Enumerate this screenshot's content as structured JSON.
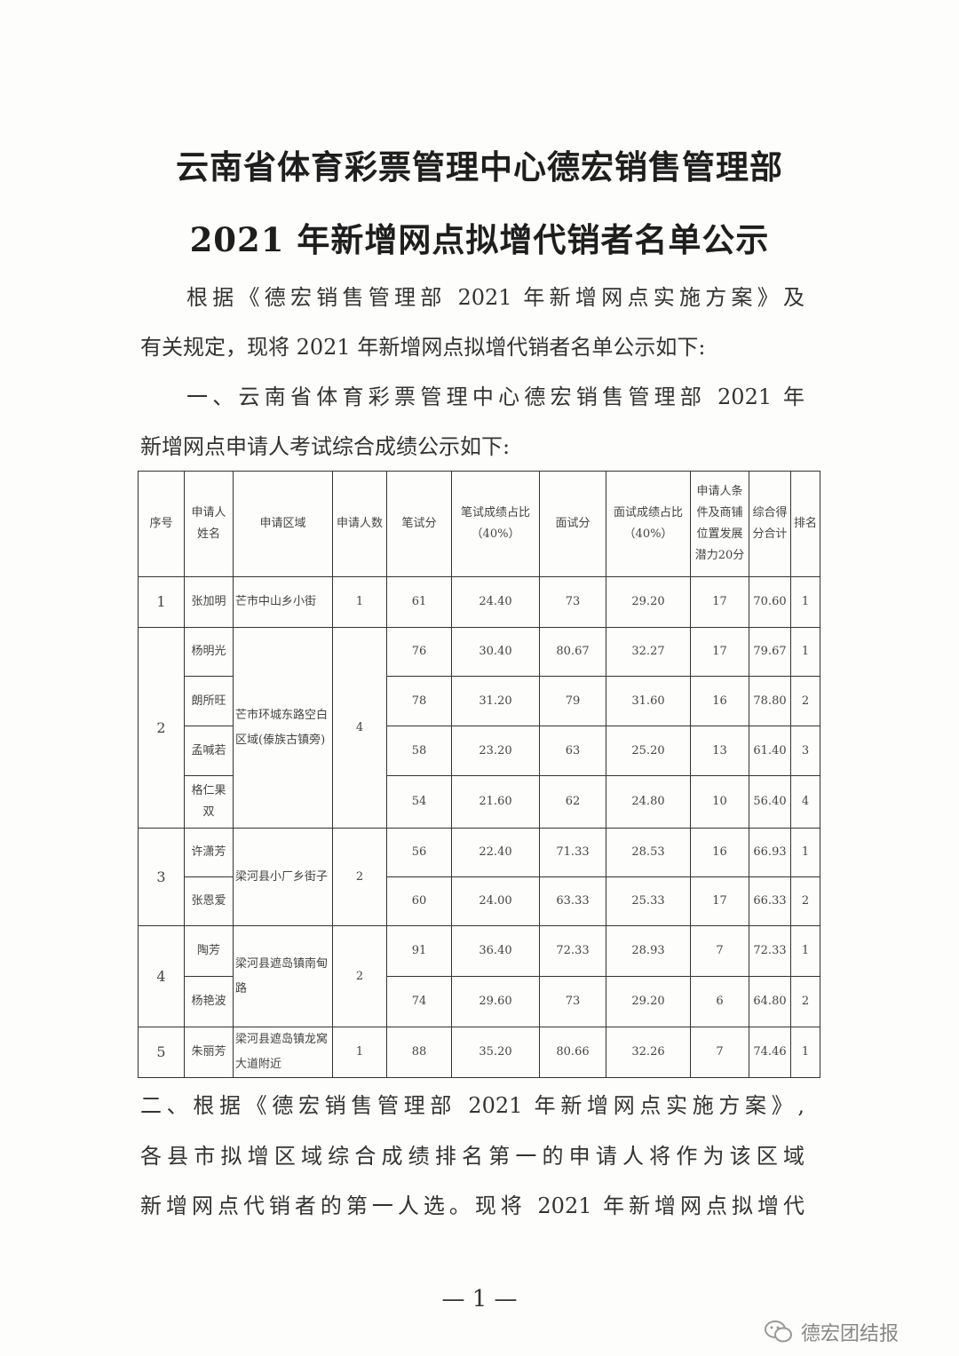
{
  "title": [
    "云南省体育彩票管理中心德宏销售管理部",
    "2021 年新增网点拟增代销者名单公示"
  ],
  "intro": [
    "根据《德宏销售管理部 2021 年新增网点实施方案》及",
    "有关规定，现将 2021 年新增网点拟增代销者名单公示如下:",
    "一、云南省体育彩票管理中心德宏销售管理部 2021 年",
    "新增网点申请人考试综合成绩公示如下:"
  ],
  "table": {
    "headers": [
      "序号",
      "申请人姓名",
      "申请区域",
      "申请人数",
      "笔试分",
      "笔试成绩占比（40%）",
      "面试分",
      "面试成绩占比（40%）",
      "申请人条件及商铺位置发展潜力20分",
      "综合得分合计",
      "排名"
    ],
    "groups": [
      {
        "no": "1",
        "region": "芒市中山乡小街",
        "count": "1",
        "rows": [
          [
            "张加明",
            "61",
            "24.40",
            "73",
            "29.20",
            "17",
            "70.60",
            "1"
          ]
        ]
      },
      {
        "no": "2",
        "region": "芒市环城东路空白区域(傣族古镇旁)",
        "count": "4",
        "rows": [
          [
            "杨明光",
            "76",
            "30.40",
            "80.67",
            "32.27",
            "17",
            "79.67",
            "1"
          ],
          [
            "朗所旺",
            "78",
            "31.20",
            "79",
            "31.60",
            "16",
            "78.80",
            "2"
          ],
          [
            "孟喊若",
            "58",
            "23.20",
            "63",
            "25.20",
            "13",
            "61.40",
            "3"
          ],
          [
            "格仁果双",
            "54",
            "21.60",
            "62",
            "24.80",
            "10",
            "56.40",
            "4"
          ]
        ]
      },
      {
        "no": "3",
        "region": "梁河县小厂乡街子",
        "count": "2",
        "rows": [
          [
            "许潇芳",
            "56",
            "22.40",
            "71.33",
            "28.53",
            "16",
            "66.93",
            "1"
          ],
          [
            "张恩爱",
            "60",
            "24.00",
            "63.33",
            "25.33",
            "17",
            "66.33",
            "2"
          ]
        ]
      },
      {
        "no": "4",
        "region": "梁河县遮岛镇南甸路",
        "count": "2",
        "rows": [
          [
            "陶芳",
            "91",
            "36.40",
            "72.33",
            "28.93",
            "7",
            "72.33",
            "1"
          ],
          [
            "杨艳波",
            "74",
            "29.60",
            "73",
            "29.20",
            "6",
            "64.80",
            "2"
          ]
        ]
      },
      {
        "no": "5",
        "region": "梁河县遮岛镇龙窝大道附近",
        "count": "1",
        "rows": [
          [
            "朱丽芳",
            "88",
            "35.20",
            "80.66",
            "32.26",
            "7",
            "74.46",
            "1"
          ]
        ]
      }
    ]
  },
  "section2": [
    "二、根据《德宏销售管理部 2021 年新增网点实施方案》,",
    "各县市拟增区域综合成绩排名第一的申请人将作为该区域",
    "新增网点代销者的第一人选。现将 2021 年新增网点拟增代"
  ],
  "page_number": "— 1 —",
  "watermark": {
    "text": "德宏团结报",
    "icon": "wechat-icon"
  }
}
